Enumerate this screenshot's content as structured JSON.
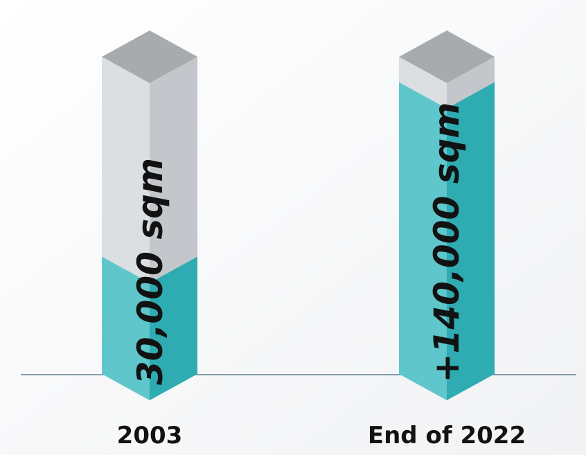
{
  "chart_data": {
    "type": "bar",
    "categories": [
      "2003",
      "End of 2022"
    ],
    "value_labels": [
      "30,000 sqm",
      "+140,000 sqm"
    ],
    "values": [
      30000,
      140000
    ],
    "fill_levels": [
      0.37,
      0.92
    ],
    "title": "",
    "xlabel": "",
    "ylabel": "",
    "colors": {
      "fill_front": "#5fc6cb",
      "fill_side": "#2eacb2",
      "empty_front": "#dcdfe2",
      "empty_side": "#c3c7cb",
      "top": "#a7abae",
      "baseline": "#5c7d8e"
    }
  }
}
